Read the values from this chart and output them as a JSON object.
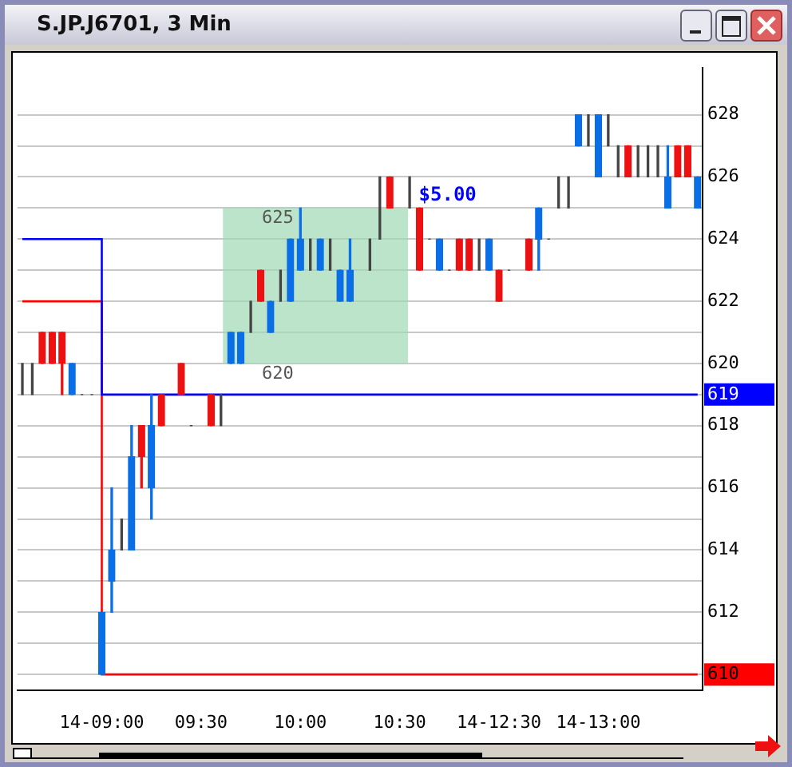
{
  "chart_data": {
    "type": "candlestick",
    "title": "S.JP.J6701, 3 Min",
    "categories": [
      null,
      null,
      null,
      null,
      null,
      null,
      null,
      null,
      "14-09:00",
      null,
      null,
      null,
      null,
      null,
      null,
      null,
      null,
      null,
      "09:30",
      null,
      null,
      null,
      null,
      null,
      null,
      null,
      null,
      null,
      "10:00",
      null,
      null,
      null,
      null,
      null,
      null,
      null,
      null,
      null,
      "10:30",
      null,
      null,
      null,
      null,
      null,
      null,
      null,
      null,
      null,
      "14-12:30",
      null,
      null,
      null,
      null,
      null,
      null,
      null,
      null,
      null,
      "14-13:00",
      null,
      null,
      null,
      null,
      null,
      null,
      null,
      null,
      null,
      null
    ],
    "ohlc": [
      [
        619,
        620,
        619,
        619
      ],
      [
        619,
        620,
        619,
        619
      ],
      [
        621,
        621,
        620,
        620
      ],
      [
        621,
        621,
        620,
        620
      ],
      [
        621,
        621,
        619,
        620
      ],
      [
        619,
        620,
        619,
        620
      ],
      [
        619,
        619,
        619,
        619
      ],
      [
        619,
        619,
        619,
        619
      ],
      [
        610,
        612,
        610,
        612
      ],
      [
        613,
        616,
        612,
        614
      ],
      [
        615,
        615,
        614,
        615
      ],
      [
        614,
        618,
        614,
        617
      ],
      [
        618,
        618,
        616,
        617
      ],
      [
        616,
        619,
        615,
        618
      ],
      [
        619,
        619,
        618,
        618
      ],
      null,
      [
        620,
        620,
        619,
        619
      ],
      [
        618,
        618,
        618,
        618
      ],
      null,
      [
        619,
        619,
        618,
        618
      ],
      [
        618,
        619,
        618,
        618
      ],
      [
        620,
        621,
        620,
        621
      ],
      [
        620,
        621,
        620,
        621
      ],
      [
        621,
        622,
        621,
        621
      ],
      [
        623,
        623,
        622,
        622
      ],
      [
        621,
        622,
        621,
        622
      ],
      [
        622,
        623,
        622,
        622
      ],
      [
        622,
        624,
        622,
        624
      ],
      [
        623,
        625,
        623,
        624
      ],
      [
        624,
        624,
        623,
        624
      ],
      [
        623,
        624,
        623,
        624
      ],
      [
        624,
        624,
        623,
        624
      ],
      [
        622,
        623,
        622,
        623
      ],
      [
        622,
        624,
        622,
        623
      ],
      null,
      [
        624,
        624,
        623,
        624
      ],
      [
        624,
        626,
        624,
        624
      ],
      [
        626,
        626,
        625,
        625
      ],
      null,
      [
        625,
        626,
        625,
        625
      ],
      [
        625,
        625,
        623,
        623
      ],
      [
        624,
        624,
        624,
        624
      ],
      [
        623,
        624,
        623,
        624
      ],
      [
        623,
        623,
        623,
        623
      ],
      [
        624,
        624,
        623,
        623
      ],
      [
        624,
        624,
        623,
        623
      ],
      [
        623,
        624,
        623,
        623
      ],
      [
        623,
        624,
        623,
        624
      ],
      [
        623,
        623,
        622,
        622
      ],
      [
        623,
        623,
        623,
        623
      ],
      null,
      [
        624,
        624,
        623,
        623
      ],
      [
        624,
        625,
        623,
        625
      ],
      [
        624,
        624,
        624,
        624
      ],
      [
        625,
        626,
        625,
        625
      ],
      [
        625,
        626,
        625,
        625
      ],
      [
        627,
        628,
        627,
        628
      ],
      [
        627,
        628,
        627,
        627
      ],
      [
        626,
        628,
        626,
        628
      ],
      [
        627,
        628,
        627,
        627
      ],
      [
        626,
        627,
        626,
        626
      ],
      [
        627,
        627,
        626,
        626
      ],
      [
        626,
        627,
        626,
        626
      ],
      [
        626,
        627,
        626,
        626
      ],
      [
        626,
        627,
        626,
        626
      ],
      [
        625,
        627,
        625,
        626
      ],
      [
        627,
        627,
        626,
        626
      ],
      [
        627,
        627,
        626,
        626
      ],
      [
        625,
        626,
        625,
        626
      ]
    ],
    "colors": [
      "#444444",
      "#444444",
      "#ee1111",
      "#ee1111",
      "#ee1111",
      "#0a6ee6",
      "#444444",
      "#444444",
      "#0a6ee6",
      "#0a6ee6",
      "#444444",
      "#0a6ee6",
      "#ee1111",
      "#0a6ee6",
      "#ee1111",
      null,
      "#ee1111",
      "#444444",
      null,
      "#ee1111",
      "#444444",
      "#0a6ee6",
      "#0a6ee6",
      "#444444",
      "#ee1111",
      "#0a6ee6",
      "#444444",
      "#0a6ee6",
      "#0a6ee6",
      "#444444",
      "#0a6ee6",
      "#444444",
      "#0a6ee6",
      "#0a6ee6",
      null,
      "#444444",
      "#444444",
      "#ee1111",
      null,
      "#444444",
      "#ee1111",
      "#444444",
      "#0a6ee6",
      "#444444",
      "#ee1111",
      "#ee1111",
      "#444444",
      "#0a6ee6",
      "#ee1111",
      "#444444",
      null,
      "#ee1111",
      "#0a6ee6",
      "#444444",
      "#444444",
      "#444444",
      "#0a6ee6",
      "#444444",
      "#0a6ee6",
      "#444444",
      "#444444",
      "#ee1111",
      "#444444",
      "#444444",
      "#444444",
      "#0a6ee6",
      "#ee1111",
      "#ee1111",
      "#0a6ee6"
    ],
    "series": [
      {
        "type": "step",
        "color": "#0000ff",
        "values": [
          624,
          624,
          624,
          624,
          624,
          624,
          624,
          624,
          619,
          619,
          619,
          619,
          619,
          619,
          619,
          619,
          619,
          619,
          619,
          619,
          619,
          619,
          619,
          619,
          619,
          619,
          619,
          619,
          619,
          619,
          619,
          619,
          619,
          619,
          619,
          619,
          619,
          619,
          619,
          619,
          619,
          619,
          619,
          619,
          619,
          619,
          619,
          619,
          619,
          619,
          619,
          619,
          619,
          619,
          619,
          619,
          619,
          619,
          619,
          619,
          619,
          619,
          619,
          619,
          619,
          619,
          619,
          619,
          619
        ]
      },
      {
        "type": "step",
        "color": "#ff0000",
        "values": [
          622,
          622,
          622,
          622,
          622,
          622,
          622,
          622,
          610,
          610,
          610,
          610,
          610,
          610,
          610,
          610,
          610,
          610,
          610,
          610,
          610,
          610,
          610,
          610,
          610,
          610,
          610,
          610,
          610,
          610,
          610,
          610,
          610,
          610,
          610,
          610,
          610,
          610,
          610,
          610,
          610,
          610,
          610,
          610,
          610,
          610,
          610,
          610,
          610,
          610,
          610,
          610,
          610,
          610,
          610,
          610,
          610,
          610,
          610,
          610,
          610,
          610,
          610,
          610,
          610,
          610,
          610,
          610,
          610
        ]
      }
    ],
    "ylim": [
      609.5,
      629.5
    ],
    "yticks": [
      610,
      {
        "value": 611,
        "label": null
      },
      612,
      {
        "value": 613,
        "label": null
      },
      614,
      {
        "value": 615,
        "label": null
      },
      616,
      {
        "value": 617,
        "label": null
      },
      618,
      619,
      620,
      {
        "value": 621,
        "label": null
      },
      622,
      {
        "value": 623,
        "label": null
      },
      624,
      {
        "value": 625,
        "label": null
      },
      626,
      {
        "value": 627,
        "label": null
      },
      628
    ],
    "bands": [
      {
        "axis": "y",
        "from": 620,
        "to": 625,
        "label": "$5.00",
        "color": "#9ed8b4"
      }
    ],
    "annotations": [
      {
        "text": "625",
        "y": 625
      },
      {
        "text": "620",
        "y": 620
      }
    ],
    "grid": "y",
    "legend": false
  }
}
